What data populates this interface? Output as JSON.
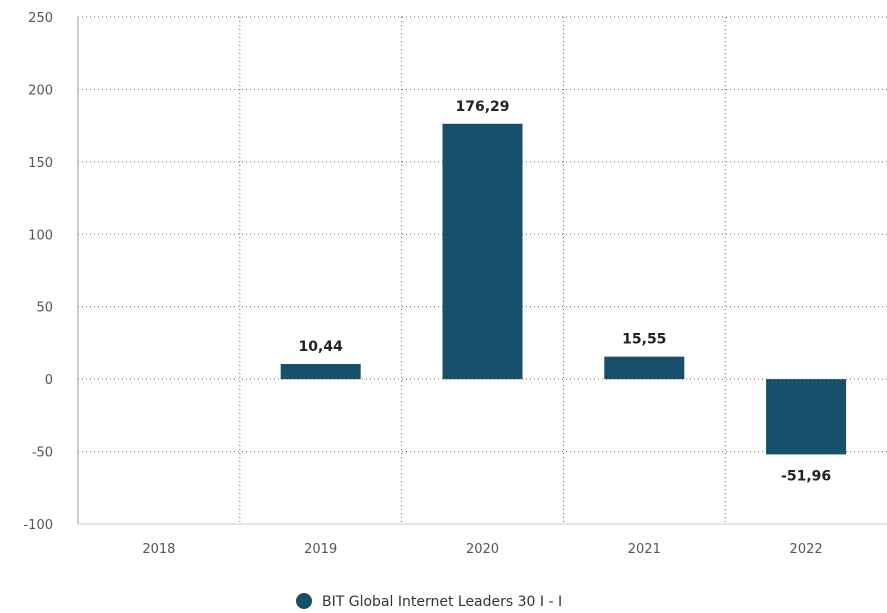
{
  "chart_data": {
    "type": "bar",
    "categories": [
      "2018",
      "2019",
      "2020",
      "2021",
      "2022"
    ],
    "series": [
      {
        "name": "BIT Global Internet Leaders 30 I - I",
        "values": [
          null,
          10.44,
          176.29,
          15.55,
          -51.96
        ],
        "data_labels": [
          "",
          "10,44",
          "176,29",
          "15,55",
          "-51,96"
        ]
      }
    ],
    "y_ticks": [
      "250",
      "200",
      "150",
      "100",
      "50",
      "0",
      "-50",
      "-100"
    ],
    "ylim": [
      -100,
      250
    ],
    "grid": true,
    "legend_position": "bottom-center",
    "bar_color": "#17506b",
    "legend_marker_color": "#17506b"
  }
}
